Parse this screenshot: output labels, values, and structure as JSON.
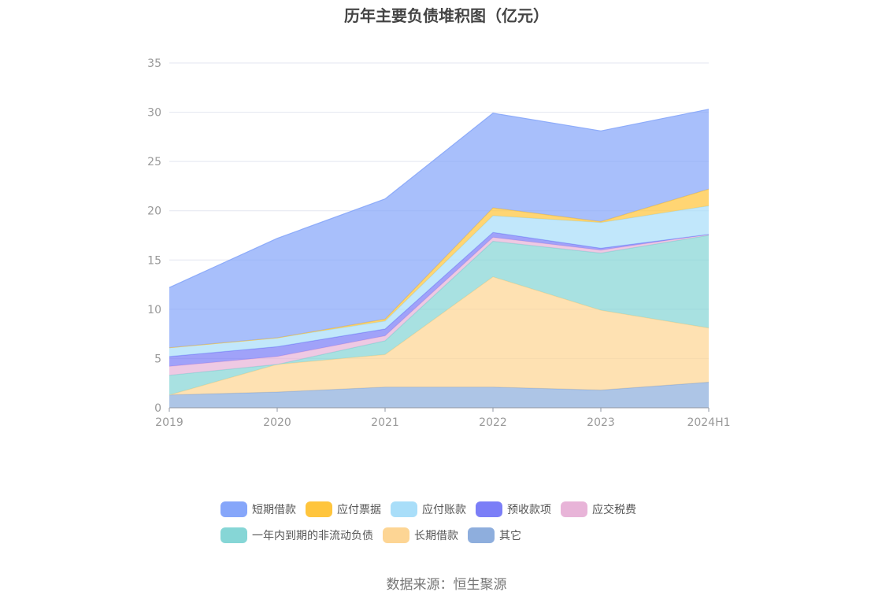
{
  "title": "历年主要负债堆积图（亿元）",
  "source": "数据来源：恒生聚源",
  "chart_data": {
    "type": "area",
    "stacked": true,
    "title": "历年主要负债堆积图（亿元）",
    "categories": [
      "2019",
      "2020",
      "2021",
      "2022",
      "2023",
      "2024H1"
    ],
    "ylim": [
      0,
      35
    ],
    "yticks": [
      "0",
      "5",
      "10",
      "15",
      "20",
      "25",
      "30",
      "35"
    ],
    "grid": true,
    "legend_position": "bottom",
    "series": [
      {
        "name": "其它",
        "color": "#8eaedd",
        "values": [
          1.3,
          1.6,
          2.1,
          2.1,
          1.8,
          2.6
        ]
      },
      {
        "name": "长期借款",
        "color": "#fdd594",
        "values": [
          0.0,
          2.8,
          3.3,
          11.2,
          8.1,
          5.5
        ]
      },
      {
        "name": "一年内到期的非流动负债",
        "color": "#86d6d6",
        "values": [
          2.0,
          0.0,
          1.4,
          3.6,
          5.8,
          9.4
        ]
      },
      {
        "name": "应交税费",
        "color": "#e8b4d8",
        "values": [
          0.9,
          0.8,
          0.5,
          0.4,
          0.3,
          0.1
        ]
      },
      {
        "name": "预收款项",
        "color": "#7b7ef7",
        "values": [
          1.0,
          1.0,
          0.7,
          0.5,
          0.2,
          0.0
        ]
      },
      {
        "name": "应付账款",
        "color": "#a9def9",
        "values": [
          0.9,
          0.9,
          0.8,
          1.7,
          2.6,
          2.9
        ]
      },
      {
        "name": "应付票据",
        "color": "#ffc53d",
        "values": [
          0.0,
          0.0,
          0.2,
          0.8,
          0.1,
          1.7
        ]
      },
      {
        "name": "短期借款",
        "color": "#86a6fa",
        "values": [
          6.1,
          10.1,
          12.2,
          9.6,
          9.2,
          8.1
        ]
      }
    ]
  },
  "legend_rows": [
    [
      "短期借款",
      "应付票据",
      "应付账款",
      "预收款项",
      "应交税费"
    ],
    [
      "一年内到期的非流动负债",
      "长期借款",
      "其它"
    ]
  ]
}
